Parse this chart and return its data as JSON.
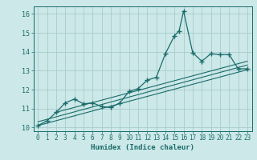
{
  "title": "",
  "xlabel": "Humidex (Indice chaleur)",
  "ylabel": "",
  "bg_color": "#cce8e8",
  "grid_color": "#aacccc",
  "line_color": "#1a6b6b",
  "xlim": [
    -0.5,
    23.5
  ],
  "ylim": [
    9.8,
    16.4
  ],
  "xticks": [
    0,
    1,
    2,
    3,
    4,
    5,
    6,
    7,
    8,
    9,
    10,
    11,
    12,
    13,
    14,
    15,
    16,
    17,
    18,
    19,
    20,
    21,
    22,
    23
  ],
  "yticks": [
    10,
    11,
    12,
    13,
    14,
    15,
    16
  ],
  "series": [
    [
      0,
      10.1
    ],
    [
      1,
      10.35
    ],
    [
      2,
      10.8
    ],
    [
      3,
      11.3
    ],
    [
      4,
      11.5
    ],
    [
      5,
      11.25
    ],
    [
      6,
      11.3
    ],
    [
      7,
      11.1
    ],
    [
      8,
      11.05
    ],
    [
      9,
      11.3
    ],
    [
      10,
      11.9
    ],
    [
      11,
      12.05
    ],
    [
      12,
      12.5
    ],
    [
      13,
      12.65
    ],
    [
      14,
      13.9
    ],
    [
      15,
      14.85
    ],
    [
      15.5,
      15.1
    ],
    [
      16,
      16.15
    ],
    [
      17,
      13.95
    ],
    [
      18,
      13.5
    ],
    [
      19,
      13.9
    ],
    [
      20,
      13.85
    ],
    [
      21,
      13.85
    ],
    [
      22,
      13.1
    ],
    [
      23,
      13.1
    ]
  ],
  "line1": [
    [
      0,
      10.1
    ],
    [
      23,
      13.05
    ]
  ],
  "line2": [
    [
      0,
      10.3
    ],
    [
      23,
      13.3
    ]
  ],
  "line3": [
    [
      2,
      10.8
    ],
    [
      23,
      13.5
    ]
  ]
}
